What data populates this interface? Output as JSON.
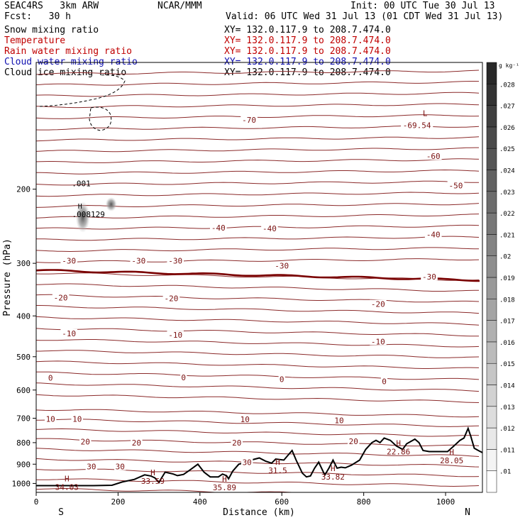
{
  "header": {
    "model": "SEAC4RS   3km ARW",
    "org": "NCAR/MMM",
    "init": "Init: 00 UTC Tue 30 Jul 13",
    "fcst": "Fcst:   30 h",
    "valid": "Valid: 06 UTC Wed 31 Jul 13 (01 CDT Wed 31 Jul 13)"
  },
  "fields": [
    {
      "name": "Snow mixing ratio",
      "xy": "XY= 132.0.117.9 to 208.7.474.0",
      "color": "#000000"
    },
    {
      "name": "Temperature",
      "xy": "XY= 132.0.117.9 to 208.7.474.0",
      "color": "#c00000"
    },
    {
      "name": "Rain water mixing ratio",
      "xy": "XY= 132.0.117.9 to 208.7.474.0",
      "color": "#c00000"
    },
    {
      "name": "Cloud water mixing ratio",
      "xy": "XY= 132.0.117.9 to 208.7.474.0",
      "color": "#1010b0"
    },
    {
      "name": "Cloud ice mixing ratio",
      "xy": "XY= 132.0.117.9 to 208.7.474.0",
      "color": "#000000"
    }
  ],
  "chart_data": {
    "type": "line",
    "xlabel": "Distance (km)",
    "ylabel": "Pressure (hPa)",
    "xlim": [
      0,
      1090
    ],
    "ylim": [
      1050,
      100
    ],
    "yscale": "log",
    "xticks": [
      0,
      200,
      400,
      600,
      800,
      1000
    ],
    "yticks": [
      200,
      300,
      400,
      500,
      600,
      700,
      800,
      900,
      1000
    ],
    "x_end_labels": {
      "left": "S",
      "right": "N"
    },
    "isotherm_labels": [
      {
        "v": "-70",
        "x": 520,
        "p": 137
      },
      {
        "v": "-69.54",
        "x": 930,
        "p": 141
      },
      {
        "v": "-60",
        "x": 970,
        "p": 167
      },
      {
        "v": "-50",
        "x": 1025,
        "p": 196
      },
      {
        "v": "-40",
        "x": 445,
        "p": 247
      },
      {
        "v": "-40",
        "x": 570,
        "p": 248
      },
      {
        "v": "-40",
        "x": 970,
        "p": 256
      },
      {
        "v": "-30",
        "x": 80,
        "p": 296
      },
      {
        "v": "-30",
        "x": 250,
        "p": 296
      },
      {
        "v": "-30",
        "x": 340,
        "p": 296
      },
      {
        "v": "-30",
        "x": 600,
        "p": 304
      },
      {
        "v": "-30",
        "x": 960,
        "p": 323
      },
      {
        "v": "-20",
        "x": 60,
        "p": 362
      },
      {
        "v": "-20",
        "x": 330,
        "p": 363
      },
      {
        "v": "-20",
        "x": 835,
        "p": 375
      },
      {
        "v": "-10",
        "x": 80,
        "p": 440
      },
      {
        "v": "-10",
        "x": 340,
        "p": 444
      },
      {
        "v": "-10",
        "x": 835,
        "p": 460
      },
      {
        "v": "0",
        "x": 35,
        "p": 561
      },
      {
        "v": "0",
        "x": 360,
        "p": 560
      },
      {
        "v": "0",
        "x": 600,
        "p": 565
      },
      {
        "v": "0",
        "x": 850,
        "p": 572
      },
      {
        "v": "10",
        "x": 35,
        "p": 703
      },
      {
        "v": "10",
        "x": 100,
        "p": 703
      },
      {
        "v": "10",
        "x": 510,
        "p": 704
      },
      {
        "v": "10",
        "x": 740,
        "p": 708
      },
      {
        "v": "20",
        "x": 120,
        "p": 795
      },
      {
        "v": "20",
        "x": 245,
        "p": 800
      },
      {
        "v": "20",
        "x": 490,
        "p": 801
      },
      {
        "v": "20",
        "x": 775,
        "p": 794
      },
      {
        "v": "30",
        "x": 135,
        "p": 912
      },
      {
        "v": "30",
        "x": 205,
        "p": 912
      },
      {
        "v": "30",
        "x": 515,
        "p": 891
      }
    ],
    "extrema": [
      {
        "type": "H",
        "value": "34.03",
        "x": 75,
        "p": 988
      },
      {
        "type": "H",
        "value": "33.59",
        "x": 285,
        "p": 956
      },
      {
        "type": "H",
        "value": "35.89",
        "x": 460,
        "p": 990
      },
      {
        "type": "H",
        "value": "31.5",
        "x": 590,
        "p": 902
      },
      {
        "type": "H",
        "value": "33.82",
        "x": 725,
        "p": 934
      },
      {
        "type": "H",
        "value": "22.86",
        "x": 885,
        "p": 814
      },
      {
        "type": "H",
        "value": "28.05",
        "x": 1015,
        "p": 854
      },
      {
        "type": "L",
        "value": "",
        "x": 950,
        "p": 134
      }
    ],
    "snow_contour": {
      "value": ".001",
      "x": 110,
      "p": 197
    },
    "ice_contour": {
      "value": ".008129",
      "x": 100,
      "p": 233,
      "h_label": "H"
    },
    "terrain_pressure": {
      "x": [
        0,
        140,
        185,
        210,
        240,
        265,
        280,
        290,
        300,
        305,
        315,
        335,
        345,
        360,
        375,
        395,
        410,
        425,
        445,
        455,
        465,
        470,
        480,
        495,
        505,
        525,
        545,
        560,
        575,
        585,
        605,
        625,
        635,
        650,
        660,
        670,
        680,
        690,
        705,
        715,
        725,
        735,
        745,
        755,
        770,
        790,
        805,
        820,
        830,
        840,
        850,
        865,
        880,
        895,
        905,
        925,
        935,
        945,
        960,
        975,
        990,
        1005,
        1020,
        1035,
        1045,
        1055,
        1062,
        1070,
        1080,
        1090
      ],
      "p": [
        1012,
        1012,
        1010,
        992,
        978,
        954,
        960,
        970,
        995,
        975,
        940,
        950,
        958,
        952,
        930,
        900,
        940,
        965,
        965,
        950,
        958,
        975,
        935,
        900,
        895,
        880,
        870,
        885,
        895,
        875,
        880,
        835,
        880,
        945,
        965,
        960,
        920,
        890,
        955,
        920,
        880,
        920,
        915,
        918,
        905,
        880,
        830,
        800,
        790,
        800,
        780,
        790,
        815,
        830,
        805,
        785,
        800,
        835,
        840,
        840,
        840,
        840,
        815,
        790,
        780,
        740,
        775,
        825,
        835,
        845
      ]
    },
    "colorbar": {
      "unit": "g kg⁻¹",
      "levels": [
        ".01",
        ".011",
        ".012",
        ".013",
        ".014",
        ".015",
        ".016",
        ".017",
        ".018",
        ".019",
        ".02",
        ".021",
        ".022",
        ".023",
        ".024",
        ".025",
        ".026",
        ".027",
        ".028"
      ]
    }
  }
}
